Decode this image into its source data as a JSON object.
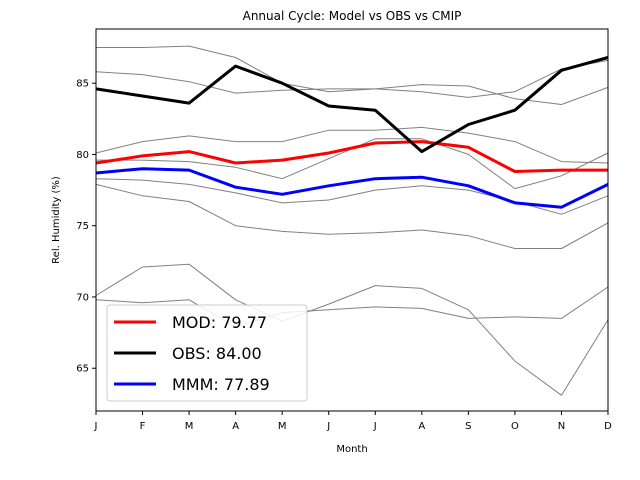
{
  "chart_data": {
    "type": "line",
    "title": "Annual Cycle: Model vs OBS vs CMIP",
    "xlabel": "Month",
    "ylabel": "Rel. Humidity (%)",
    "categories": [
      "J",
      "F",
      "M",
      "A",
      "M",
      "J",
      "J",
      "A",
      "S",
      "O",
      "N",
      "D"
    ],
    "ylim": [
      62,
      88.8
    ],
    "yticks": [
      65,
      70,
      75,
      80,
      85
    ],
    "grid": false,
    "legend_position": "lower-left",
    "series": [
      {
        "name": "MOD: 79.77",
        "color": "#ff0000",
        "width": 3,
        "values": [
          79.4,
          79.9,
          80.2,
          79.4,
          79.6,
          80.1,
          80.8,
          80.9,
          80.5,
          78.8,
          78.9,
          78.9
        ]
      },
      {
        "name": "OBS: 84.00",
        "color": "#000000",
        "width": 3,
        "values": [
          84.6,
          84.1,
          83.6,
          86.2,
          85.0,
          83.4,
          83.1,
          80.2,
          82.1,
          83.1,
          85.9,
          86.8
        ]
      },
      {
        "name": "MMM: 77.89",
        "color": "#0000ff",
        "width": 3,
        "values": [
          78.7,
          79.0,
          78.9,
          77.7,
          77.2,
          77.8,
          78.3,
          78.4,
          77.8,
          76.6,
          76.3,
          77.9
        ]
      }
    ],
    "cmip_models": [
      {
        "color": "#808080",
        "values": [
          87.5,
          87.5,
          87.6,
          86.8,
          85.0,
          84.4,
          84.6,
          84.9,
          84.8,
          83.9,
          83.5,
          84.7
        ]
      },
      {
        "color": "#808080",
        "values": [
          85.8,
          85.6,
          85.1,
          84.3,
          84.5,
          84.6,
          84.6,
          84.4,
          84.0,
          84.4,
          86.0,
          86.6
        ]
      },
      {
        "color": "#808080",
        "values": [
          80.1,
          80.9,
          81.3,
          80.9,
          80.9,
          81.7,
          81.7,
          81.9,
          81.5,
          80.9,
          79.5,
          79.4
        ]
      },
      {
        "color": "#808080",
        "values": [
          79.6,
          79.6,
          79.5,
          79.1,
          78.3,
          79.7,
          81.1,
          81.1,
          80.0,
          77.6,
          78.5,
          80.1
        ]
      },
      {
        "color": "#808080",
        "values": [
          78.3,
          78.2,
          77.9,
          77.3,
          76.6,
          76.8,
          77.5,
          77.8,
          77.5,
          76.7,
          75.8,
          77.1
        ]
      },
      {
        "color": "#808080",
        "values": [
          77.9,
          77.1,
          76.7,
          75.0,
          74.6,
          74.4,
          74.5,
          74.7,
          74.3,
          73.4,
          73.4,
          75.2
        ]
      },
      {
        "color": "#808080",
        "values": [
          70.1,
          72.1,
          72.3,
          69.8,
          68.3,
          69.5,
          70.8,
          70.6,
          69.1,
          65.5,
          63.1,
          68.4
        ]
      },
      {
        "color": "#808080",
        "values": [
          69.8,
          69.6,
          69.8,
          67.9,
          68.9,
          69.1,
          69.3,
          69.2,
          68.5,
          68.6,
          68.5,
          70.7
        ]
      }
    ]
  }
}
